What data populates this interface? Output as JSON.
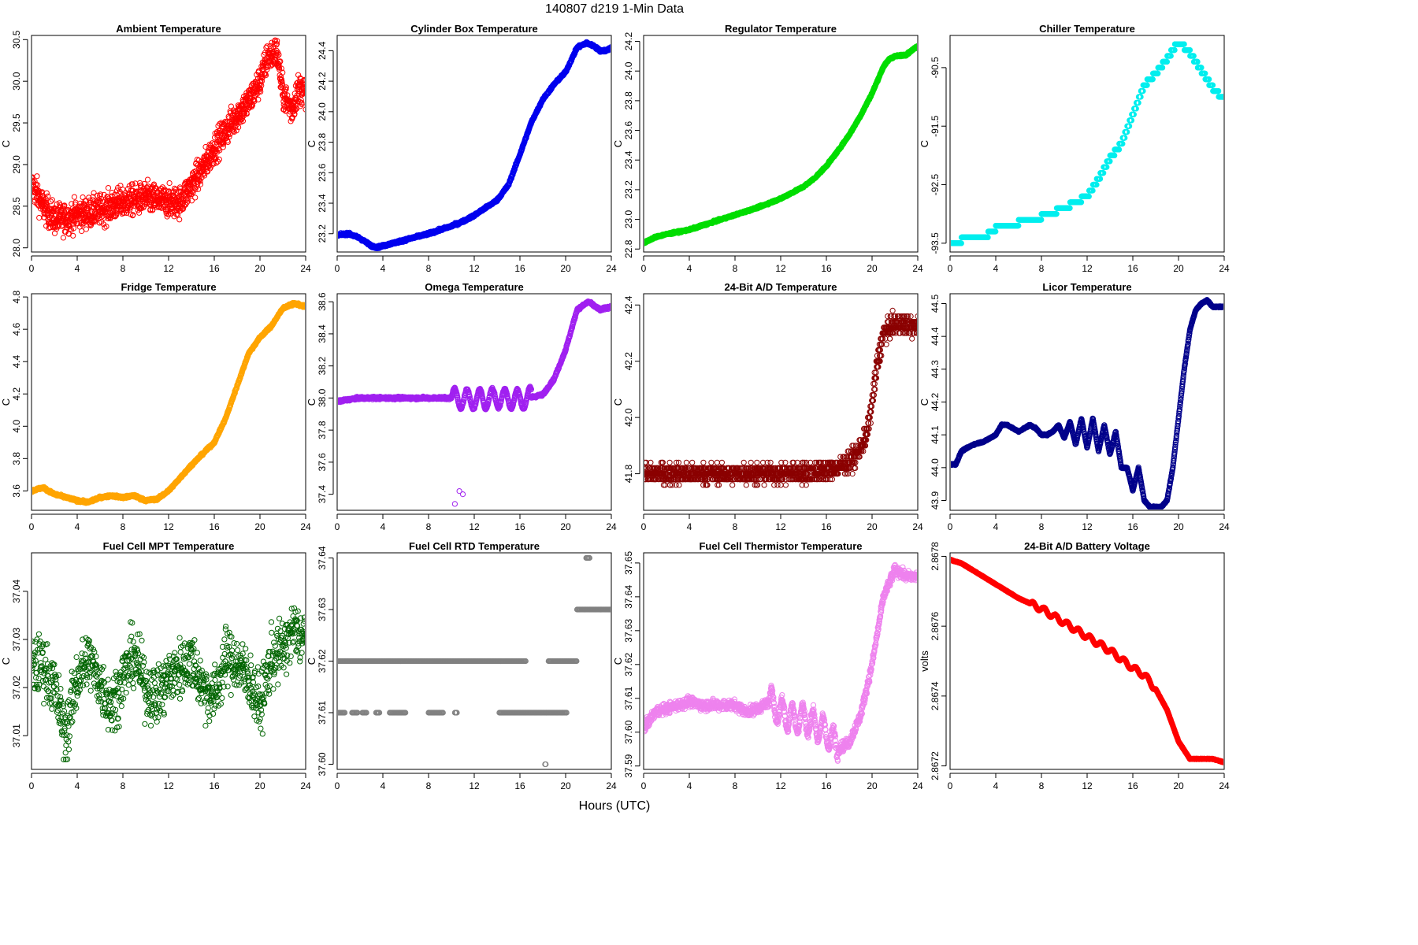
{
  "figure": {
    "title": "140807    d219    1-Min Data",
    "xlabel": "Hours (UTC)"
  },
  "chart_data": [
    {
      "type": "scatter",
      "title": "Ambient Temperature",
      "ylabel": "C",
      "color": "#ff0000",
      "xlim": [
        0,
        24
      ],
      "ylim": [
        27.95,
        30.55
      ],
      "xticks": [
        0,
        4,
        8,
        12,
        16,
        20,
        24
      ],
      "yticks": [
        28.0,
        28.5,
        29.0,
        29.5,
        30.0,
        30.5
      ],
      "ytick_labels": [
        "28.0",
        "28.5",
        "29.0",
        "29.5",
        "30.0",
        "30.5"
      ],
      "noise": 0.18,
      "series_knots": {
        "x": [
          0,
          0.5,
          1,
          2,
          3,
          4,
          6,
          8,
          10,
          12,
          13,
          14,
          15,
          16,
          17,
          18,
          19,
          20,
          20.7,
          21.5,
          22,
          22.8,
          23.3,
          24
        ],
        "y": [
          28.75,
          28.65,
          28.5,
          28.35,
          28.35,
          28.4,
          28.45,
          28.55,
          28.6,
          28.55,
          28.55,
          28.75,
          28.95,
          29.2,
          29.4,
          29.6,
          29.75,
          30.0,
          30.3,
          30.35,
          29.85,
          29.65,
          29.9,
          29.9
        ]
      }
    },
    {
      "type": "scatter",
      "title": "Cylinder Box Temperature",
      "ylabel": "C",
      "color": "#0000ee",
      "xlim": [
        0,
        24
      ],
      "ylim": [
        23.08,
        24.5
      ],
      "xticks": [
        0,
        4,
        8,
        12,
        16,
        20,
        24
      ],
      "yticks": [
        23.2,
        23.4,
        23.6,
        23.8,
        24.0,
        24.2,
        24.4
      ],
      "ytick_labels": [
        "23.2",
        "23.4",
        "23.6",
        "23.8",
        "24.0",
        "24.2",
        "24.4"
      ],
      "noise": 0.008,
      "series_knots": {
        "x": [
          0,
          1,
          2,
          3,
          3.5,
          4,
          5,
          6,
          8,
          10,
          11,
          12,
          13,
          14,
          15,
          16,
          17,
          18,
          19,
          20,
          21,
          21.8,
          22.5,
          23,
          23.5,
          24
        ],
        "y": [
          23.19,
          23.2,
          23.17,
          23.12,
          23.11,
          23.12,
          23.14,
          23.16,
          23.2,
          23.25,
          23.28,
          23.32,
          23.37,
          23.42,
          23.52,
          23.72,
          23.93,
          24.08,
          24.18,
          24.26,
          24.42,
          24.45,
          24.43,
          24.4,
          24.4,
          24.42
        ]
      }
    },
    {
      "type": "scatter",
      "title": "Regulator Temperature",
      "ylabel": "C",
      "color": "#00dd00",
      "xlim": [
        0,
        24
      ],
      "ylim": [
        22.78,
        24.24
      ],
      "xticks": [
        0,
        4,
        8,
        12,
        16,
        20,
        24
      ],
      "yticks": [
        22.8,
        23.0,
        23.2,
        23.4,
        23.6,
        23.8,
        24.0,
        24.2
      ],
      "ytick_labels": [
        "22.8",
        "23.0",
        "23.2",
        "23.4",
        "23.6",
        "23.8",
        "24.0",
        "24.2"
      ],
      "noise": 0.006,
      "series_knots": {
        "x": [
          0,
          1,
          2,
          4,
          6,
          8,
          10,
          12,
          14,
          15,
          16,
          17,
          18,
          19,
          20,
          21,
          21.5,
          22,
          23,
          24
        ],
        "y": [
          22.84,
          22.88,
          22.9,
          22.93,
          22.98,
          23.03,
          23.08,
          23.14,
          23.22,
          23.28,
          23.36,
          23.46,
          23.57,
          23.7,
          23.85,
          24.03,
          24.08,
          24.1,
          24.11,
          24.17
        ]
      }
    },
    {
      "type": "scatter",
      "title": "Chiller Temperature",
      "ylabel": "C",
      "color": "#00eeee",
      "xlim": [
        0,
        24
      ],
      "ylim": [
        -93.65,
        -89.95
      ],
      "xticks": [
        0,
        4,
        8,
        12,
        16,
        20,
        24
      ],
      "yticks": [
        -93.5,
        -92.5,
        -91.5,
        -90.5
      ],
      "ytick_labels": [
        "-93.5",
        "-92.5",
        "-91.5",
        "-90.5"
      ],
      "noise": 0.0,
      "step": 0.1,
      "series_knots": {
        "x": [
          0,
          1,
          2,
          3,
          4,
          6,
          8,
          10,
          12,
          13,
          14,
          15,
          16,
          17,
          18,
          19,
          20,
          21,
          22,
          23,
          24
        ],
        "y": [
          -93.55,
          -93.45,
          -93.42,
          -93.4,
          -93.25,
          -93.15,
          -93.05,
          -92.9,
          -92.7,
          -92.4,
          -92.05,
          -91.8,
          -91.3,
          -90.8,
          -90.6,
          -90.35,
          -90.05,
          -90.25,
          -90.55,
          -90.85,
          -91.05
        ]
      }
    },
    {
      "type": "scatter",
      "title": "Fridge Temperature",
      "ylabel": "C",
      "color": "#ffa500",
      "xlim": [
        0,
        24
      ],
      "ylim": [
        3.48,
        4.82
      ],
      "xticks": [
        0,
        4,
        8,
        12,
        16,
        20,
        24
      ],
      "yticks": [
        3.6,
        3.8,
        4.0,
        4.2,
        4.4,
        4.6,
        4.8
      ],
      "ytick_labels": [
        "3.6",
        "3.8",
        "4.0",
        "4.2",
        "4.4",
        "4.6",
        "4.8"
      ],
      "noise": 0.007,
      "series_knots": {
        "x": [
          0,
          1,
          2,
          3,
          4,
          5,
          6,
          7,
          8,
          9,
          10,
          11,
          12,
          13,
          14,
          15,
          16,
          17,
          18,
          19,
          20,
          21,
          22,
          23,
          24
        ],
        "y": [
          3.6,
          3.62,
          3.58,
          3.56,
          3.54,
          3.53,
          3.56,
          3.57,
          3.56,
          3.57,
          3.54,
          3.55,
          3.6,
          3.68,
          3.76,
          3.83,
          3.9,
          4.05,
          4.25,
          4.45,
          4.55,
          4.62,
          4.73,
          4.76,
          4.74
        ]
      }
    },
    {
      "type": "scatter",
      "title": "Omega Temperature",
      "ylabel": "C",
      "color": "#a020f0",
      "xlim": [
        0,
        24
      ],
      "ylim": [
        37.3,
        38.65
      ],
      "xticks": [
        0,
        4,
        8,
        12,
        16,
        20,
        24
      ],
      "yticks": [
        37.4,
        37.6,
        37.8,
        38.0,
        38.2,
        38.4,
        38.6
      ],
      "ytick_labels": [
        "37.4",
        "37.6",
        "37.8",
        "38.0",
        "38.2",
        "38.4",
        "38.6"
      ],
      "noise": 0.008,
      "wiggle": {
        "start": 10,
        "end": 17,
        "amp": 0.06,
        "period": 1.1
      },
      "outliers": [
        [
          10.3,
          37.34
        ],
        [
          10.7,
          37.42
        ],
        [
          11.0,
          37.4
        ]
      ],
      "series_knots": {
        "x": [
          0,
          2,
          4,
          6,
          8,
          10,
          12,
          14,
          16,
          18,
          19,
          20,
          21,
          22,
          23,
          24
        ],
        "y": [
          37.98,
          38.0,
          38.0,
          38.0,
          38.0,
          38.0,
          37.99,
          38.0,
          37.99,
          38.02,
          38.12,
          38.3,
          38.55,
          38.6,
          38.55,
          38.57
        ]
      }
    },
    {
      "type": "scatter",
      "title": "24-Bit A/D Temperature",
      "ylabel": "C",
      "color": "#8b0000",
      "xlim": [
        0,
        24
      ],
      "ylim": [
        41.67,
        42.44
      ],
      "xticks": [
        0,
        4,
        8,
        12,
        16,
        20,
        24
      ],
      "yticks": [
        41.8,
        42.0,
        42.2,
        42.4
      ],
      "ytick_labels": [
        "41.8",
        "42.0",
        "42.2",
        "42.4"
      ],
      "noise": 0.035,
      "step": 0.02,
      "series_knots": {
        "x": [
          0,
          4,
          8,
          12,
          16,
          17.5,
          18.5,
          19.5,
          20,
          20.5,
          21,
          22,
          23,
          24
        ],
        "y": [
          41.8,
          41.8,
          41.8,
          41.8,
          41.81,
          41.83,
          41.86,
          41.93,
          42.05,
          42.2,
          42.3,
          42.33,
          42.33,
          42.32
        ]
      }
    },
    {
      "type": "scatter",
      "title": "Licor Temperature",
      "ylabel": "C",
      "color": "#00008b",
      "xlim": [
        0,
        24
      ],
      "ylim": [
        43.87,
        44.53
      ],
      "xticks": [
        0,
        4,
        8,
        12,
        16,
        20,
        24
      ],
      "yticks": [
        43.9,
        44.0,
        44.1,
        44.2,
        44.3,
        44.4,
        44.5
      ],
      "ytick_labels": [
        "43.9",
        "44.0",
        "44.1",
        "44.2",
        "44.3",
        "44.4",
        "44.5"
      ],
      "noise": 0.002,
      "series_knots": {
        "x": [
          0,
          0.5,
          1,
          1.5,
          2,
          3,
          4,
          4.5,
          5,
          5.5,
          6,
          6.5,
          7,
          7.5,
          8,
          8.5,
          9,
          9.5,
          10,
          10.5,
          11,
          11.5,
          12,
          12.5,
          13,
          13.5,
          14,
          14.5,
          15,
          15.5,
          16,
          16.5,
          17,
          17.5,
          18,
          18.5,
          19,
          19.5,
          20,
          20.5,
          21,
          21.5,
          22,
          22.5,
          23,
          23.5,
          24
        ],
        "y": [
          44.01,
          44.01,
          44.05,
          44.06,
          44.07,
          44.08,
          44.1,
          44.13,
          44.13,
          44.12,
          44.11,
          44.12,
          44.13,
          44.12,
          44.1,
          44.1,
          44.11,
          44.13,
          44.09,
          44.14,
          44.07,
          44.15,
          44.06,
          44.15,
          44.05,
          44.13,
          44.04,
          44.11,
          44.0,
          44.0,
          43.93,
          44.0,
          43.9,
          43.88,
          43.88,
          43.88,
          43.9,
          44.0,
          44.15,
          44.3,
          44.42,
          44.48,
          44.5,
          44.51,
          44.49,
          44.49,
          44.49
        ]
      }
    },
    {
      "type": "scatter",
      "title": "Fuel Cell MPT Temperature",
      "ylabel": "C",
      "color": "#006400",
      "xlim": [
        0,
        24
      ],
      "ylim": [
        37.003,
        37.048
      ],
      "xticks": [
        0,
        4,
        8,
        12,
        16,
        20,
        24
      ],
      "yticks": [
        37.01,
        37.02,
        37.03,
        37.04
      ],
      "ytick_labels": [
        "37.01",
        "37.02",
        "37.03",
        "37.04"
      ],
      "noise": 0.006,
      "sparse": true,
      "series_knots": {
        "x": [
          0,
          1,
          2,
          3,
          4,
          5,
          6,
          7,
          8,
          9,
          10,
          11,
          12,
          13,
          14,
          15,
          16,
          17,
          18,
          19,
          20,
          21,
          22,
          23,
          24
        ],
        "y": [
          37.024,
          37.025,
          37.02,
          37.01,
          37.022,
          37.026,
          37.021,
          37.016,
          37.022,
          37.027,
          37.02,
          37.018,
          37.022,
          37.024,
          37.026,
          37.02,
          37.018,
          37.026,
          37.025,
          37.022,
          37.016,
          37.026,
          37.028,
          37.032,
          37.03
        ]
      }
    },
    {
      "type": "scatter",
      "title": "Fuel Cell RTD Temperature",
      "ylabel": "C",
      "color": "#808080",
      "xlim": [
        0,
        24
      ],
      "ylim": [
        37.599,
        37.641
      ],
      "xticks": [
        0,
        4,
        8,
        12,
        16,
        20,
        24
      ],
      "yticks": [
        37.6,
        37.61,
        37.62,
        37.63,
        37.64
      ],
      "ytick_labels": [
        "37.60",
        "37.61",
        "37.62",
        "37.63",
        "37.64"
      ],
      "levels": [
        {
          "y": 37.62,
          "segments": [
            [
              0,
              16.5
            ],
            [
              18.5,
              21.0
            ]
          ]
        },
        {
          "y": 37.61,
          "segments": [
            [
              0,
              0.7
            ],
            [
              1.3,
              1.8
            ],
            [
              2.2,
              2.6
            ],
            [
              3.4,
              3.7
            ],
            [
              4.6,
              6.0
            ],
            [
              8.0,
              9.3
            ],
            [
              10.3,
              10.5
            ],
            [
              14.2,
              20.1
            ]
          ]
        },
        {
          "y": 37.63,
          "segments": [
            [
              21.0,
              24.0
            ]
          ]
        },
        {
          "y": 37.64,
          "segments": [
            [
              21.8,
              22.1
            ]
          ]
        },
        {
          "y": 37.6,
          "segments": [
            [
              18.2,
              18.3
            ]
          ]
        }
      ]
    },
    {
      "type": "scatter",
      "title": "Fuel Cell Thermistor Temperature",
      "ylabel": "C",
      "color": "#ee82ee",
      "xlim": [
        0,
        24
      ],
      "ylim": [
        37.589,
        37.653
      ],
      "xticks": [
        0,
        4,
        8,
        12,
        16,
        20,
        24
      ],
      "yticks": [
        37.59,
        37.6,
        37.61,
        37.62,
        37.63,
        37.64,
        37.65
      ],
      "ytick_labels": [
        "37.59",
        "37.60",
        "37.61",
        "37.62",
        "37.63",
        "37.64",
        "37.65"
      ],
      "noise": 0.0015,
      "wiggle": {
        "start": 11,
        "end": 17,
        "amp": 0.004,
        "period": 0.9
      },
      "series_knots": {
        "x": [
          0,
          1,
          2,
          3,
          4,
          5,
          6,
          7,
          8,
          9,
          10,
          11,
          12,
          13,
          14,
          15,
          16,
          17,
          18,
          19,
          20,
          21,
          22,
          23,
          24
        ],
        "y": [
          37.601,
          37.606,
          37.607,
          37.608,
          37.609,
          37.608,
          37.608,
          37.608,
          37.608,
          37.606,
          37.607,
          37.609,
          37.606,
          37.604,
          37.604,
          37.602,
          37.6,
          37.595,
          37.597,
          37.605,
          37.62,
          37.64,
          37.648,
          37.646,
          37.646
        ]
      }
    },
    {
      "type": "scatter",
      "title": "24-Bit A/D Battery Voltage",
      "ylabel": "volts",
      "color": "#ff0000",
      "xlim": [
        0,
        24
      ],
      "ylim": [
        2.86719,
        2.86781
      ],
      "xticks": [
        0,
        4,
        8,
        12,
        16,
        20,
        24
      ],
      "yticks": [
        2.8672,
        2.8674,
        2.8676,
        2.8678
      ],
      "ytick_labels": [
        "2.8672",
        "2.8674",
        "2.8676",
        "2.8678"
      ],
      "noise": 1e-06,
      "wiggle": {
        "start": 7,
        "end": 18,
        "amp": 8e-06,
        "period": 1.0
      },
      "series_knots": {
        "x": [
          0,
          1,
          2,
          3,
          4,
          6,
          8,
          10,
          12,
          14,
          16,
          17,
          18,
          19,
          20,
          21,
          22,
          23,
          24
        ],
        "y": [
          2.86779,
          2.86778,
          2.86776,
          2.86774,
          2.86772,
          2.86768,
          2.86765,
          2.86761,
          2.86757,
          2.86753,
          2.86748,
          2.86746,
          2.86742,
          2.86736,
          2.86727,
          2.86722,
          2.86722,
          2.86722,
          2.86721
        ]
      }
    }
  ]
}
